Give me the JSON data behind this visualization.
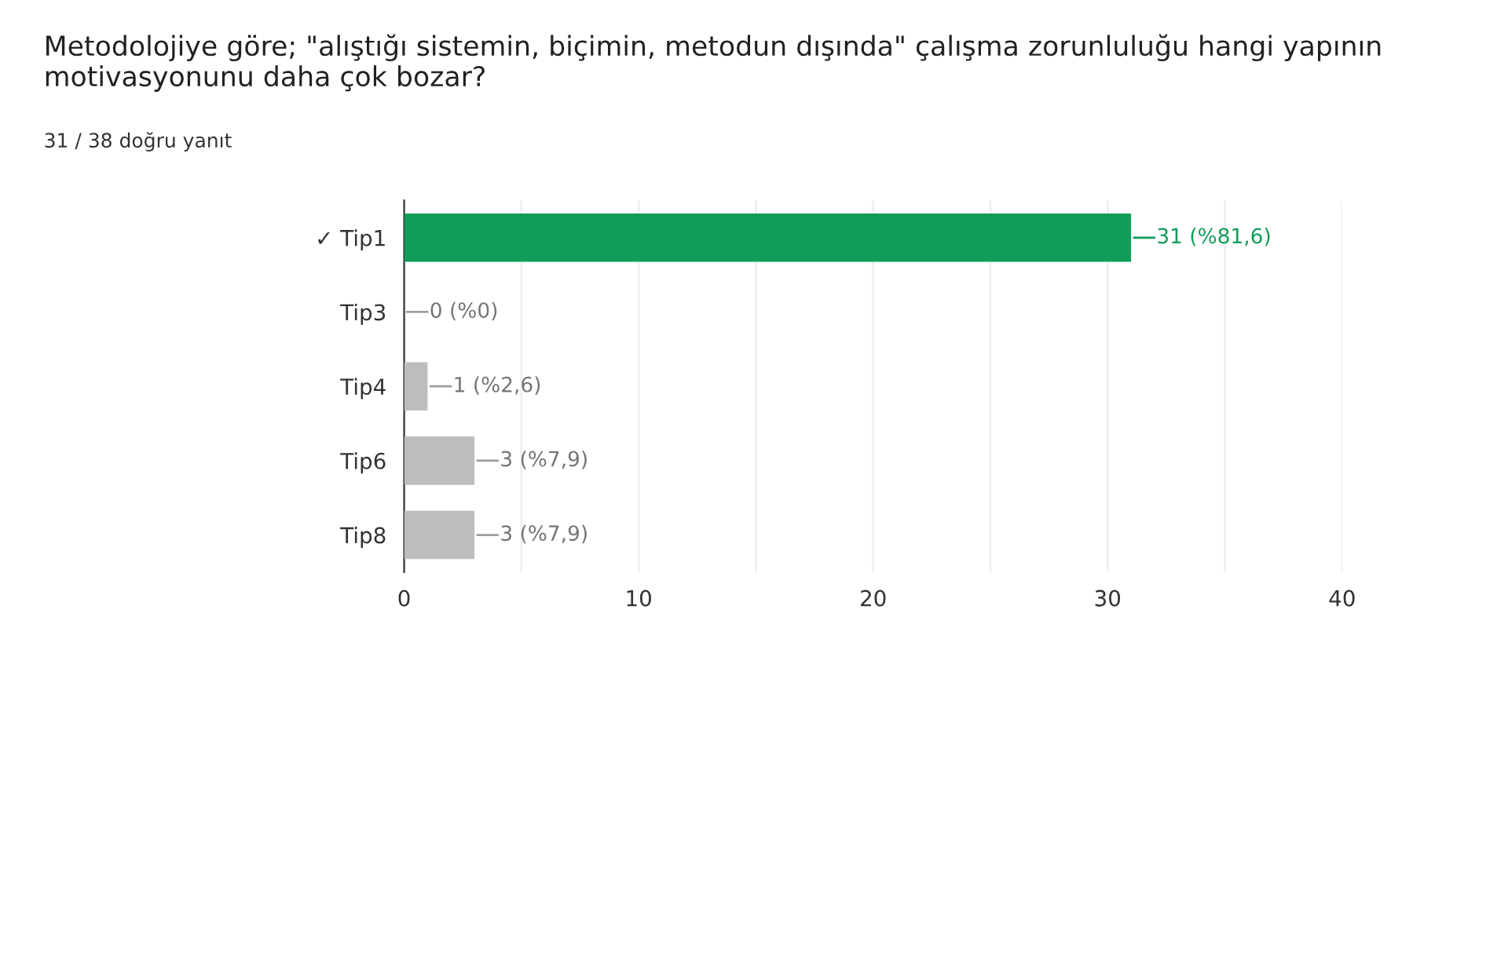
{
  "chart_data": {
    "type": "bar",
    "orientation": "horizontal",
    "title": "Metodolojiye göre; \"alıştığı sistemin, biçimin, metodun dışında\" çalışma zorunluluğu hangi yapının motivasyonunu daha çok bozar?",
    "subtitle": "31 / 38 doğru yanıt",
    "categories": [
      "✓ Tip1",
      "Tip3",
      "Tip4",
      "Tip6",
      "Tip8"
    ],
    "values": [
      31,
      0,
      1,
      3,
      3
    ],
    "colors": [
      "#0f9d58",
      "#bdbdbd",
      "#bdbdbd",
      "#bdbdbd",
      "#bdbdbd"
    ],
    "value_labels": [
      "31 (%81,6)",
      "0 (%0)",
      "1 (%2,6)",
      "3 (%7,9)",
      "3 (%7,9)"
    ],
    "xlim": [
      0,
      40
    ],
    "xticks": [
      0,
      {
        "value": 5,
        "label": null
      },
      10,
      {
        "value": 15,
        "label": null
      },
      20,
      {
        "value": 25,
        "label": null
      },
      30,
      {
        "value": 35,
        "label": null
      },
      40
    ],
    "grid": "x",
    "legend": false
  }
}
